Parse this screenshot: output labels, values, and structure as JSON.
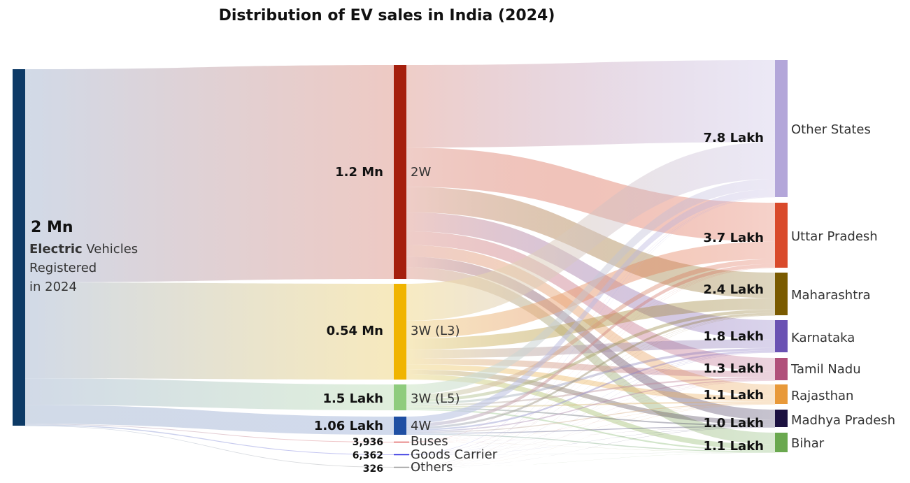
{
  "chart_data": {
    "type": "sankey",
    "title": "Distribution of EV sales in India (2024)",
    "source": {
      "value_label": "2 Mn",
      "line1_bold": "Electric",
      "line1_rest": "Vehicles",
      "line2": "Registered",
      "line3": "in 2024",
      "color": "#0d3a66"
    },
    "categories": [
      {
        "name": "2W",
        "value_label": "1.2 Mn",
        "value": 1200000,
        "color": "#a51f0d",
        "flow_color": "#e8b8b0"
      },
      {
        "name": "3W (L3)",
        "value_label": "0.54 Mn",
        "value": 540000,
        "color": "#f0b400",
        "flow_color": "#f4e2a8"
      },
      {
        "name": "3W (L5)",
        "value_label": "1.5 Lakh",
        "value": 150000,
        "color": "#8fcc7d",
        "flow_color": "#d5ead0"
      },
      {
        "name": "4W",
        "value_label": "1.06 Lakh",
        "value": 106000,
        "color": "#1f4fa3",
        "flow_color": "#c2cde6"
      },
      {
        "name": "Buses",
        "value_label": "3,936",
        "value": 3936,
        "color": "#e06060",
        "flow_color": "#f0b0b0"
      },
      {
        "name": "Goods Carrier",
        "value_label": "6,362",
        "value": 6362,
        "color": "#2a2ae0",
        "flow_color": "#b0b0f0"
      },
      {
        "name": "Others",
        "value_label": "326",
        "value": 326,
        "color": "#999999",
        "flow_color": "#d0d0d0"
      }
    ],
    "states": [
      {
        "name": "Other States",
        "value_label": "7.8 Lakh",
        "value": 780000,
        "color": "#b3a6d9"
      },
      {
        "name": "Uttar Pradesh",
        "value_label": "3.7 Lakh",
        "value": 370000,
        "color": "#d94a2b"
      },
      {
        "name": "Maharashtra",
        "value_label": "2.4 Lakh",
        "value": 240000,
        "color": "#7a5a00"
      },
      {
        "name": "Karnataka",
        "value_label": "1.8 Lakh",
        "value": 180000,
        "color": "#6a52b3"
      },
      {
        "name": "Tamil Nadu",
        "value_label": "1.3 Lakh",
        "value": 130000,
        "color": "#b0507a"
      },
      {
        "name": "Rajasthan",
        "value_label": "1.1 Lakh",
        "value": 110000,
        "color": "#e8993a"
      },
      {
        "name": "Madhya Pradesh",
        "value_label": "1.0 Lakh",
        "value": 100000,
        "color": "#1c1140"
      },
      {
        "name": "Bihar",
        "value_label": "1.1 Lakh",
        "value": 110000,
        "color": "#6aa84f"
      }
    ]
  }
}
